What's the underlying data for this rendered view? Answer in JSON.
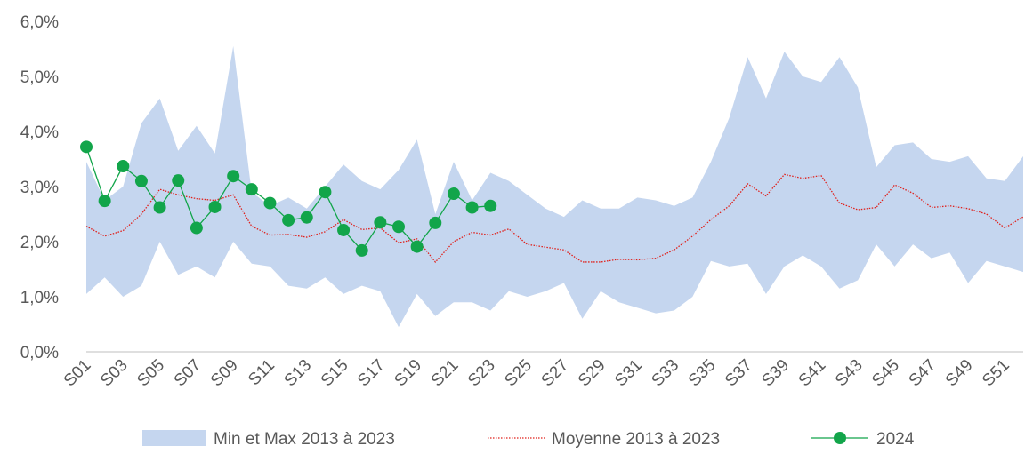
{
  "chart_data": {
    "type": "line",
    "categories": [
      "S01",
      null,
      "S03",
      null,
      "S05",
      null,
      "S07",
      null,
      "S09",
      null,
      "S11",
      null,
      "S13",
      null,
      "S15",
      null,
      "S17",
      null,
      "S19",
      null,
      "S21",
      null,
      "S23",
      null,
      "S25",
      null,
      "S27",
      null,
      "S29",
      null,
      "S31",
      null,
      "S33",
      null,
      "S35",
      null,
      "S37",
      null,
      "S39",
      null,
      "S41",
      null,
      "S43",
      null,
      "S45",
      null,
      "S47",
      null,
      "S49",
      null,
      "S51",
      null
    ],
    "ylim": [
      0,
      6
    ],
    "yticks": [
      {
        "value": 0,
        "label": "0,0%"
      },
      {
        "value": 1,
        "label": "1,0%"
      },
      {
        "value": 2,
        "label": "2,0%"
      },
      {
        "value": 3,
        "label": "3,0%"
      },
      {
        "value": 4,
        "label": "4,0%"
      },
      {
        "value": 5,
        "label": "5,0%"
      },
      {
        "value": 6,
        "label": "6,0%"
      }
    ],
    "series": [
      {
        "name": "Min et Max 2013 à 2023",
        "color": "#c5d6ef",
        "style": "band",
        "min": [
          1.05,
          1.35,
          1.0,
          1.2,
          2.0,
          1.4,
          1.55,
          1.35,
          2.0,
          1.6,
          1.55,
          1.2,
          1.15,
          1.35,
          1.05,
          1.2,
          1.1,
          0.45,
          1.05,
          0.65,
          0.9,
          0.9,
          0.75,
          1.1,
          1.0,
          1.1,
          1.25,
          0.6,
          1.1,
          0.9,
          0.8,
          0.7,
          0.75,
          1.0,
          1.65,
          1.55,
          1.6,
          1.05,
          1.55,
          1.75,
          1.55,
          1.15,
          1.3,
          1.95,
          1.55,
          1.95,
          1.7,
          1.8,
          1.25,
          1.65,
          1.55,
          1.45
        ],
        "max": [
          3.45,
          2.75,
          3.0,
          4.15,
          4.6,
          3.65,
          4.1,
          3.6,
          5.55,
          2.9,
          2.65,
          2.8,
          2.6,
          3.0,
          3.4,
          3.1,
          2.95,
          3.3,
          3.85,
          2.5,
          3.45,
          2.75,
          3.25,
          3.1,
          2.85,
          2.6,
          2.45,
          2.75,
          2.6,
          2.6,
          2.8,
          2.75,
          2.65,
          2.8,
          3.45,
          4.25,
          5.35,
          4.6,
          5.45,
          5.0,
          4.9,
          5.35,
          4.8,
          3.35,
          3.75,
          3.8,
          3.5,
          3.45,
          3.55,
          3.15,
          3.1,
          3.55
        ]
      },
      {
        "name": "Moyenne 2013 à 2023",
        "color": "#e0201b",
        "style": "dotted",
        "values": [
          2.28,
          2.1,
          2.2,
          2.5,
          2.95,
          2.85,
          2.78,
          2.75,
          2.85,
          2.28,
          2.12,
          2.13,
          2.08,
          2.18,
          2.4,
          2.22,
          2.25,
          1.98,
          2.05,
          1.63,
          2.0,
          2.17,
          2.12,
          2.23,
          1.95,
          1.9,
          1.85,
          1.63,
          1.63,
          1.68,
          1.67,
          1.7,
          1.85,
          2.1,
          2.4,
          2.65,
          3.05,
          2.83,
          3.22,
          3.15,
          3.2,
          2.7,
          2.58,
          2.62,
          3.03,
          2.88,
          2.62,
          2.65,
          2.6,
          2.5,
          2.25,
          2.45
        ]
      },
      {
        "name": "2024",
        "color": "#12a54a",
        "style": "markers",
        "values": [
          3.72,
          2.74,
          3.37,
          3.1,
          2.62,
          3.11,
          2.25,
          2.63,
          3.19,
          2.95,
          2.7,
          2.39,
          2.44,
          2.9,
          2.21,
          1.84,
          2.35,
          2.27,
          1.91,
          2.34,
          2.87,
          2.62,
          2.65,
          null,
          null,
          null,
          null,
          null,
          null,
          null,
          null,
          null,
          null,
          null,
          null,
          null,
          null,
          null,
          null,
          null,
          null,
          null,
          null,
          null,
          null,
          null,
          null,
          null,
          null,
          null,
          null,
          null
        ]
      }
    ]
  }
}
